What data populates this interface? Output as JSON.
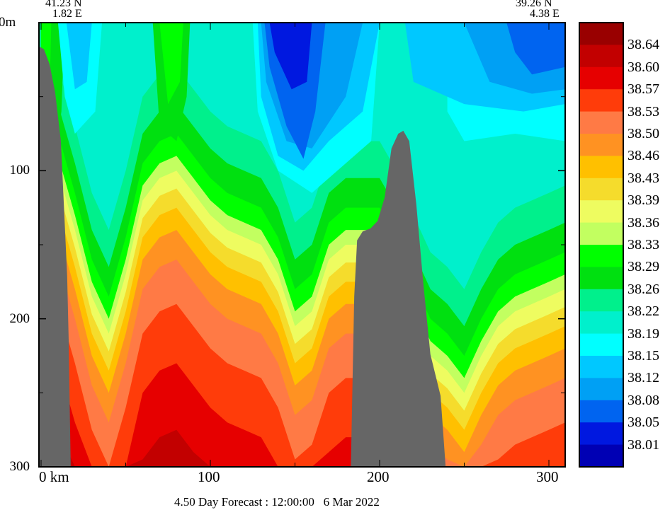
{
  "header": {
    "left_lat": "41.23 N",
    "left_lon": "1.82 E",
    "right_lat": "39.26 N",
    "right_lon": "4.38 E"
  },
  "footer": {
    "title": "4.50 Day Forecast : 12:00:00   6 Mar 2022"
  },
  "chart_data": {
    "type": "heatmap",
    "title": "4.50 Day Forecast : 12:00:00   6 Mar 2022",
    "xlabel": "km",
    "ylabel": "m",
    "xlim": [
      0,
      310
    ],
    "ylim": [
      300,
      0
    ],
    "x_ticks": [
      {
        "v": 0,
        "label": "0 km"
      },
      {
        "v": 100,
        "label": "100"
      },
      {
        "v": 200,
        "label": "200"
      },
      {
        "v": 300,
        "label": "300"
      }
    ],
    "y_ticks": [
      {
        "v": 0,
        "label": "0m"
      },
      {
        "v": 100,
        "label": "100"
      },
      {
        "v": 200,
        "label": "200"
      },
      {
        "v": 300,
        "label": "300"
      }
    ],
    "colorbar": {
      "colors": [
        "#990000",
        "#c20000",
        "#e60000",
        "#ff3c0a",
        "#ff7a45",
        "#ff9222",
        "#ffc000",
        "#f5dc2c",
        "#eefc60",
        "#c2ff60",
        "#00ff00",
        "#00e010",
        "#00f08c",
        "#00f0cc",
        "#00ffff",
        "#00c8ff",
        "#00a0f4",
        "#0064f0",
        "#0018e0",
        "#0000b4"
      ],
      "labels": [
        "38.64",
        "38.60",
        "38.57",
        "38.53",
        "38.50",
        "38.46",
        "38.43",
        "38.39",
        "38.36",
        "38.33",
        "38.29",
        "38.26",
        "38.22",
        "38.19",
        "38.15",
        "38.12",
        "38.08",
        "38.05",
        "38.01"
      ]
    },
    "km": [
      0,
      10,
      20,
      30,
      40,
      50,
      60,
      70,
      80,
      90,
      100,
      110,
      120,
      130,
      140,
      150,
      160,
      170,
      180,
      190,
      200,
      210,
      220,
      230,
      240,
      250,
      260,
      270,
      280,
      290,
      300,
      310
    ],
    "isoline_38_33_depth_m": [
      60,
      90,
      130,
      175,
      200,
      160,
      110,
      95,
      90,
      105,
      120,
      130,
      135,
      140,
      160,
      195,
      185,
      150,
      140,
      140,
      140,
      160,
      190,
      215,
      225,
      240,
      215,
      195,
      185,
      180,
      175,
      170
    ],
    "level_offsets_m": [
      {
        "level": "38.22",
        "color_index": 12,
        "offset": -60
      },
      {
        "level": "38.26",
        "color_index": 11,
        "offset": -35
      },
      {
        "level": "38.29",
        "color_index": 10,
        "offset": -15
      },
      {
        "level": "38.33",
        "color_index": 9,
        "offset": 0
      },
      {
        "level": "38.36",
        "color_index": 8,
        "offset": 10
      },
      {
        "level": "38.39",
        "color_index": 7,
        "offset": 22
      },
      {
        "level": "38.43",
        "color_index": 6,
        "offset": 35
      },
      {
        "level": "38.46",
        "color_index": 5,
        "offset": 50
      },
      {
        "level": "38.50",
        "color_index": 4,
        "offset": 70
      },
      {
        "level": "38.53",
        "color_index": 3,
        "offset": 100
      },
      {
        "level": "38.57",
        "color_index": 2,
        "offset": 140
      },
      {
        "level": "38.60",
        "color_index": 1,
        "offset": 185
      },
      {
        "level": "38.64",
        "color_index": 0,
        "offset": 235
      }
    ],
    "background_color_index": 13,
    "patches": [
      {
        "color_index": 11,
        "pts": [
          [
            0,
            0
          ],
          [
            14,
            0
          ],
          [
            12,
            60
          ],
          [
            6,
            110
          ],
          [
            0,
            110
          ]
        ]
      },
      {
        "color_index": 10,
        "pts": [
          [
            0,
            0
          ],
          [
            6,
            0
          ],
          [
            5,
            50
          ],
          [
            0,
            60
          ]
        ]
      },
      {
        "color_index": 11,
        "pts": [
          [
            66,
            0
          ],
          [
            88,
            0
          ],
          [
            86,
            50
          ],
          [
            80,
            80
          ],
          [
            70,
            70
          ]
        ]
      },
      {
        "color_index": 10,
        "pts": [
          [
            70,
            0
          ],
          [
            84,
            0
          ],
          [
            82,
            40
          ],
          [
            75,
            55
          ]
        ]
      },
      {
        "color_index": 14,
        "pts": [
          [
            10,
            0
          ],
          [
            36,
            0
          ],
          [
            32,
            60
          ],
          [
            20,
            75
          ],
          [
            14,
            50
          ]
        ]
      },
      {
        "color_index": 15,
        "pts": [
          [
            15,
            0
          ],
          [
            30,
            0
          ],
          [
            27,
            40
          ],
          [
            20,
            45
          ]
        ]
      },
      {
        "color_index": 14,
        "pts": [
          [
            125,
            0
          ],
          [
            200,
            0
          ],
          [
            195,
            80
          ],
          [
            180,
            95
          ],
          [
            160,
            115
          ],
          [
            140,
            100
          ],
          [
            128,
            60
          ]
        ]
      },
      {
        "color_index": 15,
        "pts": [
          [
            128,
            0
          ],
          [
            200,
            0
          ],
          [
            190,
            60
          ],
          [
            170,
            80
          ],
          [
            155,
            100
          ],
          [
            140,
            90
          ],
          [
            130,
            50
          ]
        ]
      },
      {
        "color_index": 16,
        "pts": [
          [
            130,
            0
          ],
          [
            190,
            0
          ],
          [
            180,
            50
          ],
          [
            160,
            85
          ],
          [
            145,
            80
          ],
          [
            133,
            40
          ]
        ]
      },
      {
        "color_index": 17,
        "pts": [
          [
            132,
            0
          ],
          [
            168,
            0
          ],
          [
            162,
            60
          ],
          [
            155,
            92
          ],
          [
            145,
            70
          ],
          [
            135,
            30
          ]
        ]
      },
      {
        "color_index": 18,
        "pts": [
          [
            135,
            0
          ],
          [
            160,
            0
          ],
          [
            157,
            40
          ],
          [
            148,
            45
          ],
          [
            138,
            20
          ]
        ]
      },
      {
        "color_index": 14,
        "pts": [
          [
            240,
            0
          ],
          [
            310,
            0
          ],
          [
            310,
            80
          ],
          [
            280,
            75
          ],
          [
            250,
            80
          ],
          [
            240,
            60
          ]
        ]
      },
      {
        "color_index": 15,
        "pts": [
          [
            215,
            0
          ],
          [
            310,
            0
          ],
          [
            310,
            55
          ],
          [
            285,
            60
          ],
          [
            250,
            55
          ],
          [
            220,
            40
          ]
        ]
      },
      {
        "color_index": 16,
        "pts": [
          [
            250,
            0
          ],
          [
            310,
            0
          ],
          [
            310,
            45
          ],
          [
            290,
            48
          ],
          [
            265,
            40
          ]
        ]
      },
      {
        "color_index": 17,
        "pts": [
          [
            275,
            0
          ],
          [
            310,
            0
          ],
          [
            310,
            30
          ],
          [
            290,
            35
          ],
          [
            280,
            20
          ]
        ]
      }
    ],
    "topography": [
      {
        "name": "left-slope",
        "pts": [
          [
            -2,
            16
          ],
          [
            1.7,
            18
          ],
          [
            5,
            28
          ],
          [
            8.3,
            47
          ],
          [
            11.7,
            80
          ],
          [
            13.3,
            119
          ],
          [
            15.4,
            171
          ],
          [
            16.3,
            214
          ],
          [
            17.5,
            300
          ],
          [
            -2,
            300
          ]
        ]
      },
      {
        "name": "seamount",
        "pts": [
          [
            183,
            300
          ],
          [
            185,
            185
          ],
          [
            186.7,
            147
          ],
          [
            190,
            141
          ],
          [
            194.6,
            139
          ],
          [
            198.8,
            134
          ],
          [
            203,
            118
          ],
          [
            207,
            85
          ],
          [
            211,
            75
          ],
          [
            214,
            73
          ],
          [
            217.5,
            80
          ],
          [
            221.7,
            123
          ],
          [
            225.8,
            176
          ],
          [
            230,
            224
          ],
          [
            233,
            238
          ],
          [
            236,
            252
          ],
          [
            239,
            300
          ]
        ]
      }
    ],
    "topography_color": "#666666"
  }
}
